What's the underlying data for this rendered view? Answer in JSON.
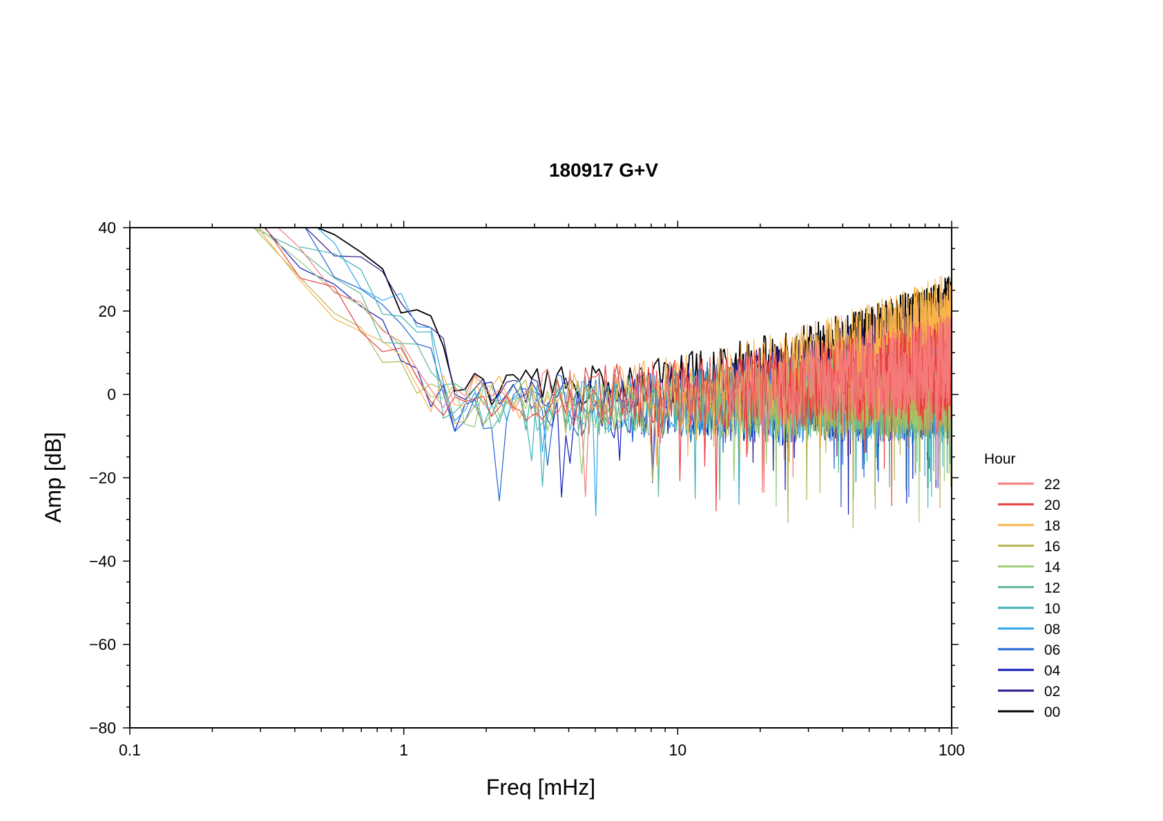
{
  "chart_data": {
    "type": "line",
    "title": "180917 G+V",
    "xlabel": "Freq [mHz]",
    "ylabel": "Amp [dB]",
    "x_scale": "log",
    "xlim": [
      0.1,
      100
    ],
    "ylim": [
      -80,
      40
    ],
    "x_ticks": [
      0.1,
      1,
      10,
      100
    ],
    "x_tick_labels": [
      "0.1",
      "1",
      "10",
      "100"
    ],
    "y_ticks": [
      -80,
      -60,
      -40,
      -20,
      0,
      20,
      40
    ],
    "y_tick_labels": [
      "−80",
      "−60",
      "−40",
      "−20",
      "0",
      "20",
      "40"
    ],
    "grid": false,
    "legend": {
      "title": "Hour",
      "position": "right"
    },
    "series": [
      {
        "name": "22",
        "color": "#f47a7a",
        "params": {
          "seed": 22,
          "start": [
            0.28,
            40
          ],
          "knee": [
            1.25,
            -7
          ],
          "floor": 0,
          "rise": 9,
          "noise": 10
        }
      },
      {
        "name": "20",
        "color": "#e83c3c",
        "params": {
          "seed": 20,
          "start": [
            0.28,
            40
          ],
          "knee": [
            1.25,
            -8
          ],
          "floor": 0,
          "rise": 7,
          "noise": 10
        }
      },
      {
        "name": "18",
        "color": "#f7b347",
        "params": {
          "seed": 18,
          "start": [
            0.26,
            40
          ],
          "knee": [
            1.25,
            -9
          ],
          "floor": 0,
          "rise": 20,
          "noise": 9
        }
      },
      {
        "name": "16",
        "color": "#b5b354",
        "params": {
          "seed": 16,
          "start": [
            0.26,
            40
          ],
          "knee": [
            1.25,
            -10
          ],
          "floor": -2,
          "rise": 5,
          "noise": 10
        }
      },
      {
        "name": "14",
        "color": "#98cc76",
        "params": {
          "seed": 14,
          "start": [
            0.28,
            40
          ],
          "knee": [
            1.25,
            -5
          ],
          "floor": -2,
          "rise": 5,
          "noise": 9
        }
      },
      {
        "name": "12",
        "color": "#55b596",
        "params": {
          "seed": 12,
          "start": [
            0.3,
            40
          ],
          "knee": [
            1.3,
            -5
          ],
          "floor": -2,
          "rise": 5,
          "noise": 10
        }
      },
      {
        "name": "10",
        "color": "#3cb2b5",
        "params": {
          "seed": 10,
          "start": [
            0.36,
            40
          ],
          "knee": [
            1.3,
            2
          ],
          "floor": -2,
          "rise": 5,
          "noise": 9
        }
      },
      {
        "name": "08",
        "color": "#2aa6ed",
        "params": {
          "seed": 8,
          "start": [
            0.38,
            40
          ],
          "knee": [
            1.3,
            4
          ],
          "floor": -2,
          "rise": 5,
          "noise": 10
        }
      },
      {
        "name": "06",
        "color": "#1c61d6",
        "params": {
          "seed": 6,
          "start": [
            0.38,
            40
          ],
          "knee": [
            1.3,
            0
          ],
          "floor": -2,
          "rise": 6,
          "noise": 11
        }
      },
      {
        "name": "04",
        "color": "#0d17b5",
        "params": {
          "seed": 4,
          "start": [
            0.3,
            40
          ],
          "knee": [
            1.25,
            -6
          ],
          "floor": -2,
          "rise": 6,
          "noise": 11
        }
      },
      {
        "name": "02",
        "color": "#2c1387",
        "params": {
          "seed": 2,
          "start": [
            0.4,
            40
          ],
          "knee": [
            1.5,
            4
          ],
          "floor": 0,
          "rise": 18,
          "noise": 7
        }
      },
      {
        "name": "00",
        "color": "#000000",
        "params": {
          "seed": 1,
          "start": [
            0.42,
            40
          ],
          "knee": [
            1.5,
            3
          ],
          "floor": 2,
          "rise": 19,
          "noise": 7
        }
      }
    ]
  }
}
